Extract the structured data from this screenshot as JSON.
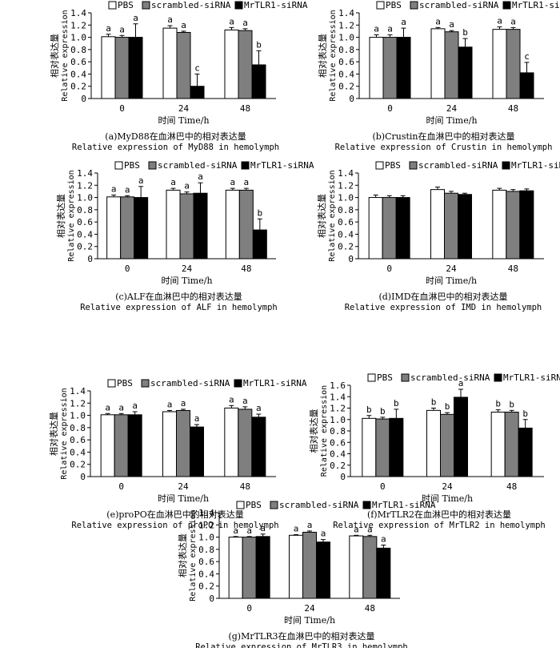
{
  "legend_labels": [
    "PBS",
    "scrambled-siRNA",
    "MrTLR1-siRNA"
  ],
  "series_colors": [
    "#ffffff",
    "#7f7f7f",
    "#000000"
  ],
  "chart_data": [
    {
      "type": "bar",
      "panel": "a",
      "categories": [
        "0",
        "24",
        "48"
      ],
      "series": [
        {
          "name": "PBS",
          "values": [
            1.01,
            1.15,
            1.12
          ],
          "errors": [
            0.04,
            0.04,
            0.04
          ],
          "letters": [
            "a",
            "a",
            "a"
          ]
        },
        {
          "name": "scrambled-siRNA",
          "values": [
            1.0,
            1.08,
            1.11
          ],
          "errors": [
            0.03,
            0.02,
            0.03
          ],
          "letters": [
            "a",
            "a",
            "a"
          ]
        },
        {
          "name": "MrTLR1-siRNA",
          "values": [
            1.0,
            0.2,
            0.55
          ],
          "errors": [
            0.22,
            0.2,
            0.23
          ],
          "letters": [
            "a",
            "c",
            "b"
          ]
        }
      ],
      "ylim": [
        0,
        1.4
      ],
      "yticks": [
        "0",
        "0.2",
        "0.4",
        "0.6",
        "0.8",
        "1.0",
        "1.2",
        "1.4"
      ],
      "ylabel_cn": "相对表达量",
      "ylabel_en": "Relative expression",
      "xlabel": "时间 Time/h",
      "caption_cn": "(a)MyD88在血淋巴中的相对表达量",
      "caption_en": "Relative expression of MyD88 in hemolymph"
    },
    {
      "type": "bar",
      "panel": "b",
      "categories": [
        "0",
        "24",
        "48"
      ],
      "series": [
        {
          "name": "PBS",
          "values": [
            1.0,
            1.14,
            1.13
          ],
          "errors": [
            0.04,
            0.02,
            0.04
          ],
          "letters": [
            "a",
            "a",
            "a"
          ]
        },
        {
          "name": "scrambled-siRNA",
          "values": [
            1.0,
            1.09,
            1.13
          ],
          "errors": [
            0.04,
            0.02,
            0.03
          ],
          "letters": [
            "a",
            "a",
            "a"
          ]
        },
        {
          "name": "MrTLR1-siRNA",
          "values": [
            1.0,
            0.84,
            0.42
          ],
          "errors": [
            0.15,
            0.14,
            0.17
          ],
          "letters": [
            "a",
            "b",
            "c"
          ]
        }
      ],
      "ylim": [
        0,
        1.4
      ],
      "yticks": [
        "0",
        "0.2",
        "0.4",
        "0.6",
        "0.8",
        "1.0",
        "1.2",
        "1.4"
      ],
      "ylabel_cn": "相对表达量",
      "ylabel_en": "Relative expression",
      "xlabel": "时间 Time/h",
      "caption_cn": "(b)Crustin在血淋巴中的相对表达量",
      "caption_en": "Relative expression of Crustin in hemolymph"
    },
    {
      "type": "bar",
      "panel": "c",
      "categories": [
        "0",
        "24",
        "48"
      ],
      "series": [
        {
          "name": "PBS",
          "values": [
            1.01,
            1.12,
            1.12
          ],
          "errors": [
            0.03,
            0.03,
            0.03
          ],
          "letters": [
            "a",
            "a",
            "a"
          ]
        },
        {
          "name": "scrambled-siRNA",
          "values": [
            1.01,
            1.06,
            1.12
          ],
          "errors": [
            0.02,
            0.03,
            0.03
          ],
          "letters": [
            "a",
            "a",
            "a"
          ]
        },
        {
          "name": "MrTLR1-siRNA",
          "values": [
            1.0,
            1.07,
            0.47
          ],
          "errors": [
            0.18,
            0.17,
            0.18
          ],
          "letters": [
            "a",
            "a",
            "b"
          ]
        }
      ],
      "ylim": [
        0,
        1.4
      ],
      "yticks": [
        "0",
        "0.2",
        "0.4",
        "0.6",
        "0.8",
        "1.0",
        "1.2",
        "1.4"
      ],
      "ylabel_cn": "相对表达量",
      "ylabel_en": "Relative expression",
      "xlabel": "时间 Time/h",
      "caption_cn": "(c)ALF在血淋巴中的相对表达量",
      "caption_en": "Relative expression of ALF in hemolymph"
    },
    {
      "type": "bar",
      "panel": "d",
      "categories": [
        "0",
        "24",
        "48"
      ],
      "series": [
        {
          "name": "PBS",
          "values": [
            1.0,
            1.13,
            1.12
          ],
          "errors": [
            0.04,
            0.04,
            0.03
          ],
          "letters": [
            "",
            "",
            ""
          ]
        },
        {
          "name": "scrambled-siRNA",
          "values": [
            1.0,
            1.07,
            1.1
          ],
          "errors": [
            0.03,
            0.03,
            0.03
          ],
          "letters": [
            "",
            "",
            ""
          ]
        },
        {
          "name": "MrTLR1-siRNA",
          "values": [
            1.0,
            1.05,
            1.11
          ],
          "errors": [
            0.03,
            0.02,
            0.03
          ],
          "letters": [
            "",
            "",
            ""
          ]
        }
      ],
      "ylim": [
        0,
        1.4
      ],
      "yticks": [
        "0",
        "0.2",
        "0.4",
        "0.6",
        "0.8",
        "1.0",
        "1.2",
        "1.4"
      ],
      "ylabel_cn": "相对表达量",
      "ylabel_en": "Relative expression",
      "xlabel": "时间 Time/h",
      "caption_cn": "(d)IMD在血淋巴中的相对表达量",
      "caption_en": "Relative expression of IMD in hemolymph"
    },
    {
      "type": "bar",
      "panel": "e",
      "categories": [
        "0",
        "24",
        "48"
      ],
      "series": [
        {
          "name": "PBS",
          "values": [
            1.01,
            1.06,
            1.12
          ],
          "errors": [
            0.02,
            0.02,
            0.04
          ],
          "letters": [
            "a",
            "a",
            "a"
          ]
        },
        {
          "name": "scrambled-siRNA",
          "values": [
            1.01,
            1.08,
            1.1
          ],
          "errors": [
            0.02,
            0.02,
            0.04
          ],
          "letters": [
            "a",
            "a",
            "a"
          ]
        },
        {
          "name": "MrTLR1-siRNA",
          "values": [
            1.01,
            0.81,
            0.97
          ],
          "errors": [
            0.05,
            0.04,
            0.05
          ],
          "letters": [
            "a",
            "a",
            "a"
          ]
        }
      ],
      "ylim": [
        0,
        1.4
      ],
      "yticks": [
        "0",
        "0.2",
        "0.4",
        "0.6",
        "0.8",
        "1.0",
        "1.2",
        "1.4"
      ],
      "ylabel_cn": "相对表达量",
      "ylabel_en": "Relative expression",
      "xlabel": "时间 Time/h",
      "caption_cn": "(e)proPO在血淋巴中的相对表达量",
      "caption_en": "Relative expression of proPO in hemolymph"
    },
    {
      "type": "bar",
      "panel": "f",
      "categories": [
        "0",
        "24",
        "48"
      ],
      "series": [
        {
          "name": "PBS",
          "values": [
            1.02,
            1.16,
            1.13
          ],
          "errors": [
            0.05,
            0.04,
            0.04
          ],
          "letters": [
            "b",
            "b",
            "b"
          ]
        },
        {
          "name": "scrambled-siRNA",
          "values": [
            1.01,
            1.09,
            1.13
          ],
          "errors": [
            0.03,
            0.03,
            0.03
          ],
          "letters": [
            "b",
            "b",
            "b"
          ]
        },
        {
          "name": "MrTLR1-siRNA",
          "values": [
            1.02,
            1.39,
            0.85
          ],
          "errors": [
            0.16,
            0.14,
            0.15
          ],
          "letters": [
            "b",
            "a",
            "b"
          ]
        }
      ],
      "ylim": [
        0,
        1.6
      ],
      "yticks": [
        "0",
        "0.2",
        "0.4",
        "0.6",
        "0.8",
        "1.0",
        "1.2",
        "1.4",
        "1.6"
      ],
      "ylabel_cn": "相对表达量",
      "ylabel_en": "Relative expression",
      "xlabel": "时间 Time/h",
      "caption_cn": "(f)MrTLR2在血淋巴中的相对表达量",
      "caption_en": "Relative expression of MrTLR2 in hemolymph"
    },
    {
      "type": "bar",
      "panel": "g",
      "categories": [
        "0",
        "24",
        "48"
      ],
      "series": [
        {
          "name": "PBS",
          "values": [
            1.0,
            1.03,
            1.02
          ],
          "errors": [
            0.01,
            0.01,
            0.01
          ],
          "letters": [
            "a",
            "a",
            "a"
          ]
        },
        {
          "name": "scrambled-siRNA",
          "values": [
            1.0,
            1.08,
            1.01
          ],
          "errors": [
            0.01,
            0.02,
            0.02
          ],
          "letters": [
            "a",
            "a",
            "a"
          ]
        },
        {
          "name": "MrTLR1-siRNA",
          "values": [
            1.01,
            0.92,
            0.82
          ],
          "errors": [
            0.04,
            0.04,
            0.05
          ],
          "letters": [
            "a",
            "a",
            "a"
          ]
        }
      ],
      "ylim": [
        0,
        1.4
      ],
      "yticks": [
        "0",
        "0.2",
        "0.4",
        "0.6",
        "0.8",
        "1.0",
        "1.2",
        "1.4"
      ],
      "ylabel_cn": "相对表达量",
      "ylabel_en": "Relative expression",
      "xlabel": "时间 Time/h",
      "caption_cn": "(g)MrTLR3在血淋巴中的相对表达量",
      "caption_en": "Relative expression of MrTLR3 in hemolymph"
    }
  ]
}
